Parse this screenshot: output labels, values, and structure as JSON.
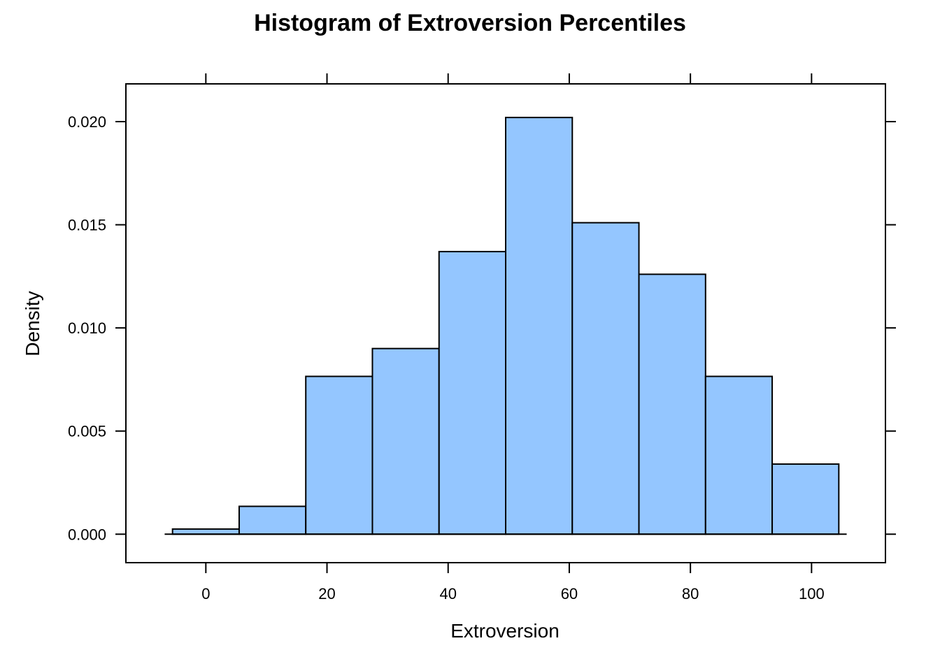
{
  "chart_data": {
    "type": "bar",
    "title": "Histogram of Extroversion Percentiles",
    "xlabel": "Extroversion",
    "ylabel": "Density",
    "xlim": [
      -13.2,
      112.2
    ],
    "ylim": [
      -0.00138,
      0.02183
    ],
    "xticks": [
      0,
      20,
      40,
      60,
      80,
      100
    ],
    "xtick_labels": [
      "0",
      "20",
      "40",
      "60",
      "80",
      "100"
    ],
    "yticks": [
      0.0,
      0.005,
      0.01,
      0.015,
      0.02
    ],
    "ytick_labels": [
      "0.000",
      "0.005",
      "0.010",
      "0.015",
      "0.020"
    ],
    "bar_color": "#94c6ff",
    "baseline_range": [
      -6.8,
      105.8
    ],
    "bins": [
      {
        "x0": -5.5,
        "x1": 5.5,
        "density": 0.00025
      },
      {
        "x0": 5.5,
        "x1": 16.5,
        "density": 0.00135
      },
      {
        "x0": 16.5,
        "x1": 27.5,
        "density": 0.00765
      },
      {
        "x0": 27.5,
        "x1": 38.5,
        "density": 0.009
      },
      {
        "x0": 38.5,
        "x1": 49.5,
        "density": 0.0137
      },
      {
        "x0": 49.5,
        "x1": 60.5,
        "density": 0.0202
      },
      {
        "x0": 60.5,
        "x1": 71.5,
        "density": 0.0151
      },
      {
        "x0": 71.5,
        "x1": 82.5,
        "density": 0.0126
      },
      {
        "x0": 82.5,
        "x1": 93.5,
        "density": 0.00765
      },
      {
        "x0": 93.5,
        "x1": 104.5,
        "density": 0.0034
      }
    ],
    "grid": false,
    "legend": "none"
  }
}
